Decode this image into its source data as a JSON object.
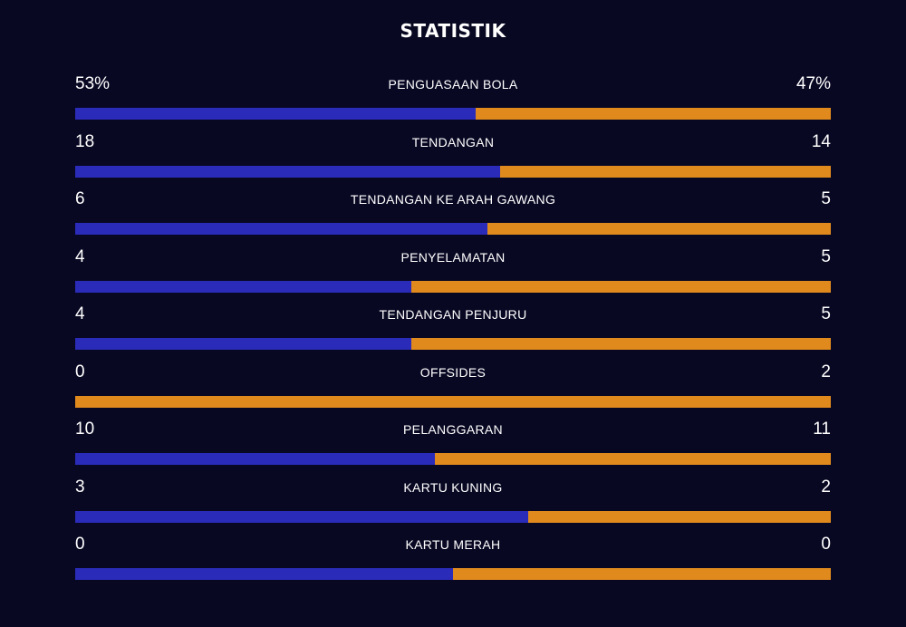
{
  "title": "STATISTIK",
  "colors": {
    "background": "#080823",
    "home_bar": "#2a2bb8",
    "away_bar": "#e08a1e",
    "text": "#ffffff"
  },
  "stats": [
    {
      "label": "PENGUASAAN BOLA",
      "home": "53%",
      "away": "47%",
      "home_share": 0.53
    },
    {
      "label": "TENDANGAN",
      "home": "18",
      "away": "14",
      "home_share": 0.5625
    },
    {
      "label": "TENDANGAN KE ARAH GAWANG",
      "home": "6",
      "away": "5",
      "home_share": 0.5455
    },
    {
      "label": "PENYELAMATAN",
      "home": "4",
      "away": "5",
      "home_share": 0.4444
    },
    {
      "label": "TENDANGAN PENJURU",
      "home": "4",
      "away": "5",
      "home_share": 0.4444
    },
    {
      "label": "OFFSIDES",
      "home": "0",
      "away": "2",
      "home_share": 0
    },
    {
      "label": "PELANGGARAN",
      "home": "10",
      "away": "11",
      "home_share": 0.4762
    },
    {
      "label": "KARTU KUNING",
      "home": "3",
      "away": "2",
      "home_share": 0.6
    },
    {
      "label": "KARTU MERAH",
      "home": "0",
      "away": "0",
      "home_share": 0.5
    }
  ]
}
